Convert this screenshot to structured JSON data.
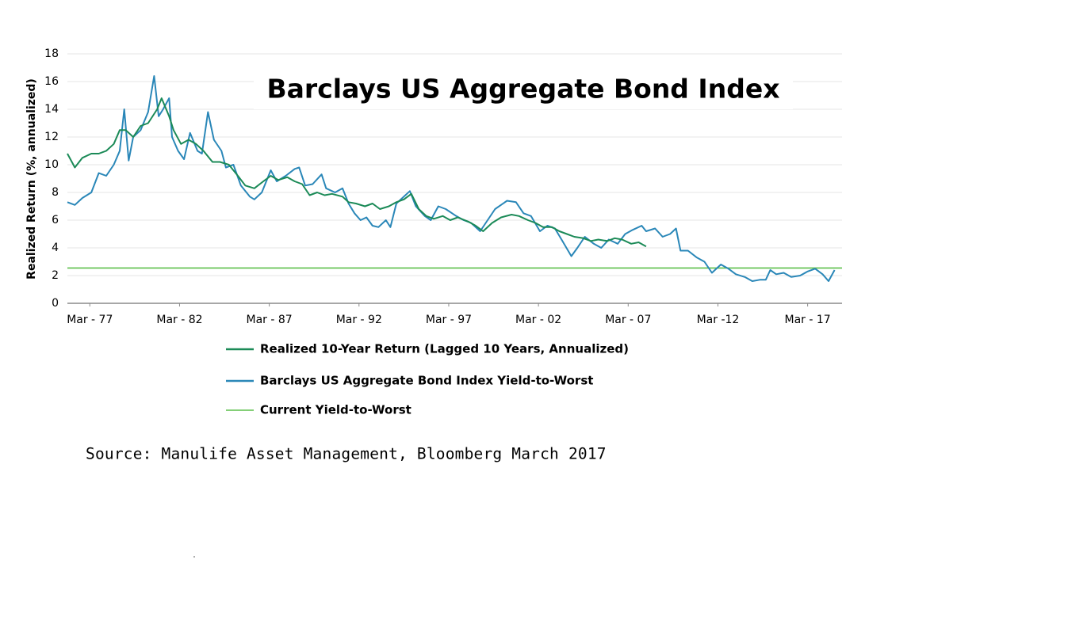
{
  "chart_data": {
    "type": "line",
    "title": "Barclays US Aggregate Bond Index",
    "y_label": "Realized Return (%, annualized)",
    "source": "Source: Manulife Asset Management, Bloomberg March 2017",
    "xlim": [
      "1975-12",
      "2019-02"
    ],
    "xticks": [
      {
        "value": "1977-03",
        "label": "Mar - 77"
      },
      {
        "value": "1982-03",
        "label": "Mar - 82"
      },
      {
        "value": "1987-03",
        "label": "Mar - 87"
      },
      {
        "value": "1992-03",
        "label": "Mar - 92"
      },
      {
        "value": "1997-03",
        "label": "Mar - 97"
      },
      {
        "value": "2002-03",
        "label": "Mar - 02"
      },
      {
        "value": "2007-03",
        "label": "Mar - 07"
      },
      {
        "value": "2012-03",
        "label": "Mar -12"
      },
      {
        "value": "2017-03",
        "label": "Mar - 17"
      }
    ],
    "ylim": [
      0,
      18
    ],
    "yticks": [
      0,
      2,
      4,
      6,
      8,
      10,
      12,
      14,
      16,
      18
    ],
    "grid": true,
    "series": [
      {
        "name": "Realized 10-Year Return (Lagged 10 Years, Annualized)",
        "color": "#1b8a57",
        "x": [
          "1975-12",
          "1976-05",
          "1976-10",
          "1977-04",
          "1977-09",
          "1978-02",
          "1978-07",
          "1978-11",
          "1979-03",
          "1979-08",
          "1980-01",
          "1980-06",
          "1980-12",
          "1981-03",
          "1981-08",
          "1981-11",
          "1982-04",
          "1982-09",
          "1983-02",
          "1983-07",
          "1984-01",
          "1984-06",
          "1984-12",
          "1985-06",
          "1985-11",
          "1986-05",
          "1986-11",
          "1987-04",
          "1987-09",
          "1988-03",
          "1988-08",
          "1989-01",
          "1989-06",
          "1989-11",
          "1990-04",
          "1990-09",
          "1991-04",
          "1991-08",
          "1992-01",
          "1992-07",
          "1992-12",
          "1993-05",
          "1993-11",
          "1994-04",
          "1994-09",
          "1995-02",
          "1995-07",
          "1995-12",
          "1996-05",
          "1996-11",
          "1997-04",
          "1997-09",
          "1998-04",
          "1998-09",
          "1999-02",
          "1999-08",
          "2000-02",
          "2000-09",
          "2001-02",
          "2001-08",
          "2002-01",
          "2002-06",
          "2002-12",
          "2003-05",
          "2003-10",
          "2004-03",
          "2004-09",
          "2005-02",
          "2005-07",
          "2006-01",
          "2006-06",
          "2006-11",
          "2007-05",
          "2007-10",
          "2008-03"
        ],
        "values": [
          10.8,
          9.8,
          10.5,
          10.8,
          10.8,
          11.0,
          11.5,
          12.5,
          12.5,
          12.0,
          12.8,
          13.0,
          14.0,
          14.8,
          13.5,
          12.5,
          11.5,
          11.8,
          11.5,
          11.0,
          10.2,
          10.2,
          10.0,
          9.2,
          8.5,
          8.3,
          8.8,
          9.2,
          8.9,
          9.1,
          8.8,
          8.6,
          7.8,
          8.0,
          7.8,
          7.9,
          7.7,
          7.3,
          7.2,
          7.0,
          7.2,
          6.8,
          7.0,
          7.3,
          7.5,
          7.9,
          6.8,
          6.3,
          6.1,
          6.3,
          6.0,
          6.2,
          5.9,
          5.6,
          5.2,
          5.8,
          6.2,
          6.4,
          6.3,
          6.0,
          5.8,
          5.5,
          5.5,
          5.2,
          5.0,
          4.8,
          4.7,
          4.5,
          4.6,
          4.5,
          4.7,
          4.6,
          4.3,
          4.4,
          4.1
        ]
      },
      {
        "name": "Barclays US Aggregate Bond Index Yield-to-Worst",
        "color": "#2a87b8",
        "x": [
          "1975-12",
          "1976-05",
          "1976-10",
          "1977-04",
          "1977-09",
          "1978-02",
          "1978-07",
          "1978-11",
          "1979-02",
          "1979-05",
          "1979-08",
          "1980-01",
          "1980-06",
          "1980-10",
          "1981-01",
          "1981-04",
          "1981-08",
          "1981-10",
          "1982-02",
          "1982-06",
          "1982-10",
          "1983-03",
          "1983-06",
          "1983-10",
          "1984-02",
          "1984-07",
          "1984-10",
          "1985-03",
          "1985-08",
          "1986-02",
          "1986-05",
          "1986-10",
          "1987-04",
          "1987-08",
          "1988-02",
          "1988-08",
          "1988-11",
          "1989-03",
          "1989-08",
          "1990-02",
          "1990-05",
          "1990-11",
          "1991-04",
          "1991-08",
          "1991-12",
          "1992-04",
          "1992-08",
          "1992-12",
          "1993-04",
          "1993-09",
          "1993-12",
          "1994-04",
          "1994-08",
          "1995-01",
          "1995-05",
          "1995-11",
          "1996-03",
          "1996-08",
          "1997-01",
          "1997-08",
          "1998-01",
          "1998-06",
          "1998-12",
          "1999-05",
          "1999-10",
          "2000-06",
          "2000-12",
          "2001-05",
          "2001-10",
          "2002-04",
          "2002-09",
          "2003-02",
          "2003-07",
          "2004-01",
          "2004-05",
          "2004-10",
          "2005-04",
          "2005-09",
          "2006-02",
          "2006-08",
          "2007-01",
          "2007-06",
          "2007-12",
          "2008-03",
          "2008-09",
          "2009-02",
          "2009-07",
          "2009-11",
          "2010-02",
          "2010-07",
          "2011-01",
          "2011-06",
          "2011-11",
          "2012-05",
          "2012-10",
          "2013-03",
          "2013-09",
          "2014-02",
          "2014-07",
          "2014-11",
          "2015-02",
          "2015-06",
          "2015-11",
          "2016-04",
          "2016-10",
          "2017-03",
          "2017-08",
          "2018-01",
          "2018-05",
          "2018-09"
        ],
        "values": [
          7.3,
          7.1,
          7.6,
          8.0,
          9.4,
          9.2,
          10.0,
          11.0,
          14.0,
          10.3,
          12.0,
          12.5,
          13.8,
          16.4,
          13.5,
          14.0,
          14.8,
          12.0,
          11.0,
          10.4,
          12.3,
          11.0,
          10.8,
          13.8,
          11.8,
          11.0,
          9.8,
          10.0,
          8.5,
          7.7,
          7.5,
          8.0,
          9.6,
          8.8,
          9.2,
          9.7,
          9.8,
          8.5,
          8.6,
          9.3,
          8.3,
          8.0,
          8.3,
          7.2,
          6.5,
          6.0,
          6.2,
          5.6,
          5.5,
          6.0,
          5.5,
          7.2,
          7.6,
          8.1,
          7.0,
          6.3,
          6.0,
          7.0,
          6.8,
          6.3,
          6.0,
          5.8,
          5.2,
          6.0,
          6.8,
          7.4,
          7.3,
          6.5,
          6.3,
          5.2,
          5.6,
          5.4,
          4.5,
          3.4,
          4.0,
          4.8,
          4.3,
          4.0,
          4.6,
          4.3,
          5.0,
          5.3,
          5.6,
          5.2,
          5.4,
          4.8,
          5.0,
          5.4,
          3.8,
          3.8,
          3.3,
          3.0,
          2.2,
          2.8,
          2.5,
          2.1,
          1.9,
          1.6,
          1.7,
          1.7,
          2.4,
          2.1,
          2.2,
          1.9,
          2.0,
          2.3,
          2.5,
          2.1,
          1.6,
          2.4
        ]
      },
      {
        "name": "Current Yield-to-Worst",
        "color": "#5cbf4a",
        "x": [
          "1975-12",
          "2019-02"
        ],
        "values": [
          2.55,
          2.55
        ]
      }
    ]
  }
}
